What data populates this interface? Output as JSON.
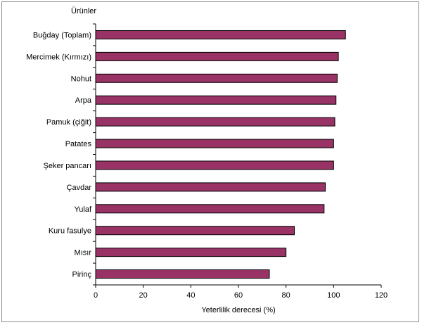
{
  "chart_data": {
    "type": "bar",
    "orientation": "horizontal",
    "title": "",
    "category_axis_label": "Ürünler",
    "xlabel": "Yeterlilik derecesi (%)",
    "categories": [
      "Buğday (Toplam)",
      "Mercimek (Kırmızı)",
      "Nohut",
      "Arpa",
      "Pamuk (çiğit)",
      "Patates",
      "Şeker pancarı",
      "Çavdar",
      "Yulaf",
      "Kuru fasulye",
      "Mısır",
      "Pirinç"
    ],
    "values": [
      105,
      102,
      101.5,
      101,
      100.5,
      100,
      100,
      96.5,
      96,
      83.5,
      80,
      73
    ],
    "xlim": [
      0,
      120
    ],
    "xticks": [
      0,
      20,
      40,
      60,
      80,
      100,
      120
    ],
    "bar_color": "#993366",
    "grid": false,
    "legend": "none"
  }
}
